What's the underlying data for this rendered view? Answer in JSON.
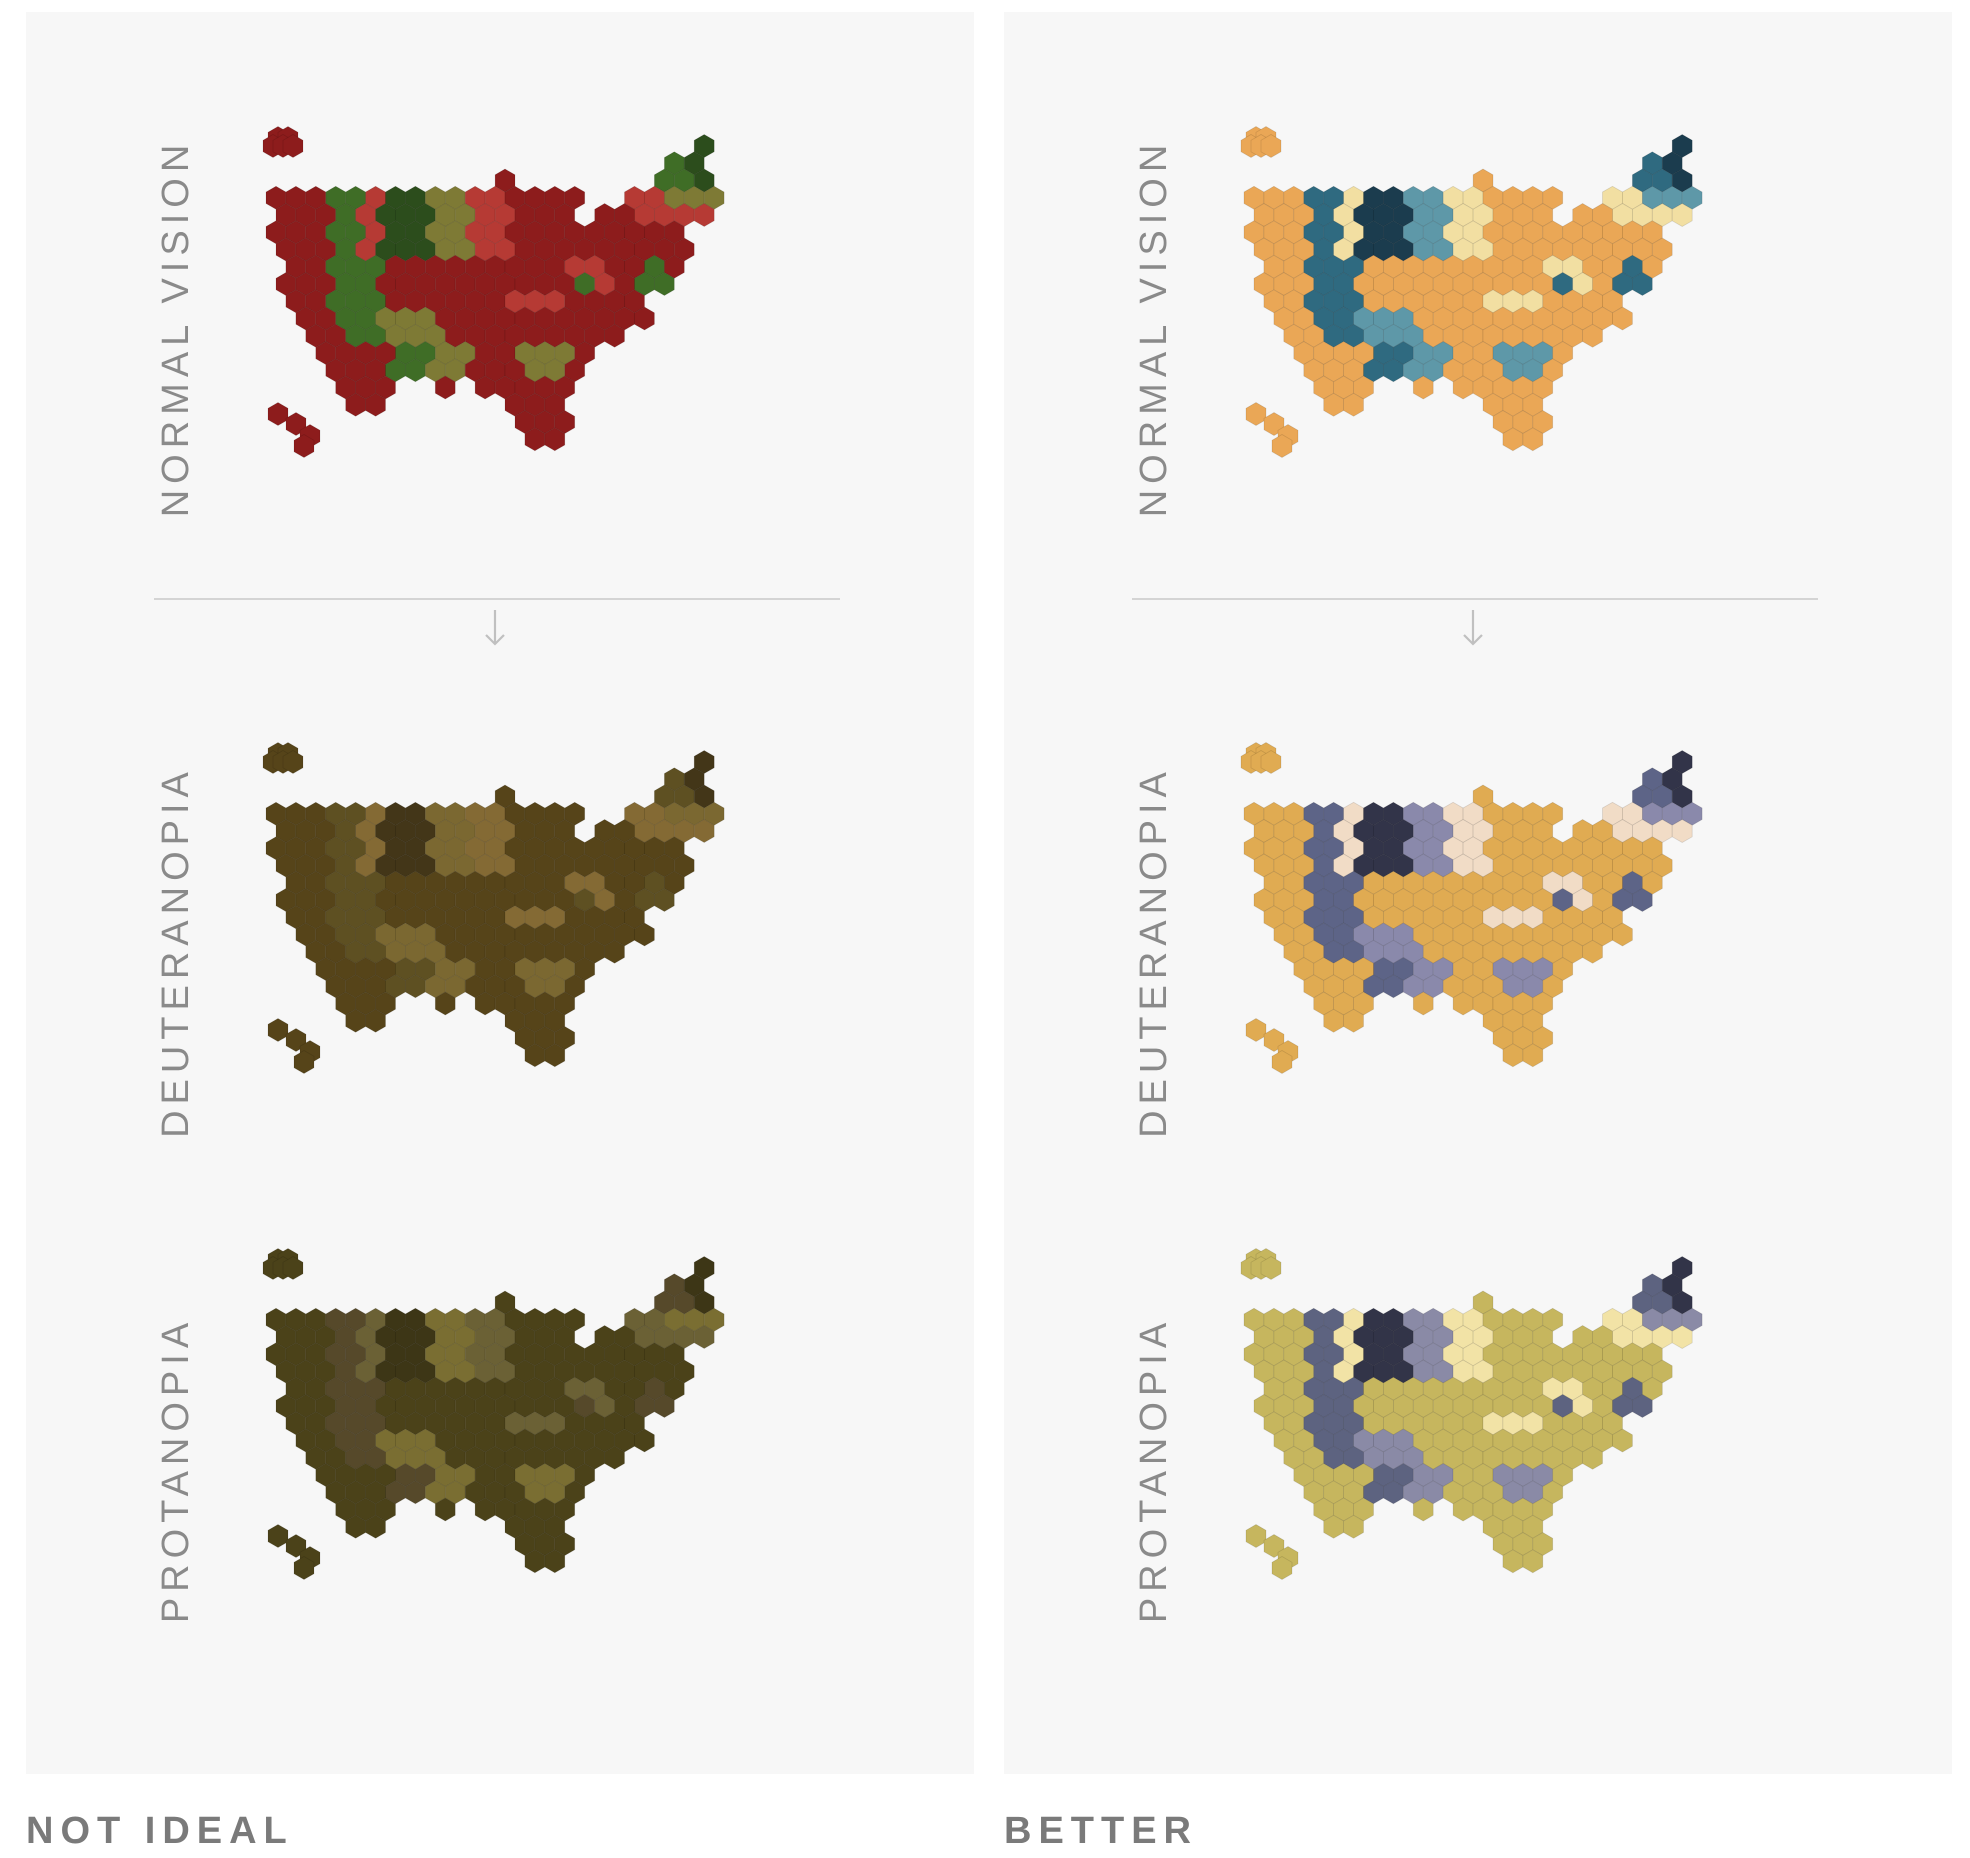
{
  "rows": [
    {
      "label": "NORMAL VISION"
    },
    {
      "label": "DEUTERANOPIA"
    },
    {
      "label": "PROTANOPIA"
    }
  ],
  "columns": [
    {
      "caption": "NOT IDEAL"
    },
    {
      "caption": "BETTER"
    }
  ],
  "palettes": [
    [
      [
        "#8d1c1c",
        "#b63a34",
        "#7e7a35",
        "#3f6d26",
        "#2c4d1c"
      ],
      [
        "#564419",
        "#846a34",
        "#7b6831",
        "#5e5022",
        "#433618"
      ],
      [
        "#4b4219",
        "#6b6135",
        "#7a6e32",
        "#56492a",
        "#3d3616"
      ]
    ],
    [
      [
        "#eaa756",
        "#f2dfa2",
        "#5e98a8",
        "#2f6a80",
        "#1b3c4e"
      ],
      [
        "#e0ab52",
        "#f1dcc6",
        "#8a89ab",
        "#5d6487",
        "#323449"
      ],
      [
        "#c6b65e",
        "#f2e3a6",
        "#8a8aa6",
        "#5d6380",
        "#323448"
      ]
    ]
  ]
}
